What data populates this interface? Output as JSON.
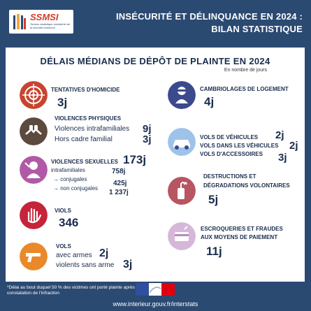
{
  "header": {
    "logo_title": "SSMSI",
    "logo_subtitle": "Service statistique ministériel de la sécurité intérieure",
    "title_line1": "INSÉCURITÉ ET DÉLINQUANCE EN 2024 :",
    "title_line2": "BILAN STATISTIQUE"
  },
  "main": {
    "title": "DÉLAIS MÉDIANS DE DÉPÔT DE PLAINTE EN 2024",
    "subtitle": "En nombre de jours"
  },
  "left": {
    "homicide": {
      "label": "TENTATIVES D'HOMICIDE",
      "value": "3j"
    },
    "physical": {
      "label": "VIOLENCES PHYSIQUES",
      "intra_label": "Violences intrafamiliales",
      "intra_value": "9j",
      "hors_label": "Hors cadre familial",
      "hors_value": "3j"
    },
    "sexual": {
      "label": "VIOLENCES SEXUELLES",
      "value": "173j",
      "intra_label": "intrafamiliales",
      "intra_value": "758j",
      "conj_label": "→ conjugales",
      "conj_value": "425j",
      "nonconj_label": "→ non conjugales",
      "nonconj_value": "1 237j"
    },
    "rape": {
      "label": "VIOLS",
      "value": "346"
    },
    "theft": {
      "label": "VOLS",
      "armed_label": "avec armes",
      "armed_value": "2j",
      "unarmed_label": "violents sans arme",
      "unarmed_value": "3j"
    }
  },
  "right": {
    "burglary": {
      "label": "CAMBRIOLAGES DE LOGEMENT",
      "value": "4j"
    },
    "vehicles": {
      "line1": "VOLS DE VÉHICULES",
      "value1": "2j",
      "line2": "VOLS DANS LES VÉHICULES",
      "value2": "2j",
      "line3": "VOLS D'ACCESSOIRES",
      "value3": "3j"
    },
    "destruction": {
      "line1": "DESTRUCTIONS ET",
      "line2": "DÉGRADATIONS VOLONTAIRES",
      "value": "5j"
    },
    "fraud": {
      "line1": "ESCROQUERIES ET FRAUDES",
      "line2": "AUX MOYENS DE PAIEMENT",
      "value": "11j"
    }
  },
  "footer": {
    "note": "*Délai au bout duquel 50 % des victimes ont porté plainte après constatation de l'infraction",
    "url": "www.interieur.gouv.fr/interstats"
  },
  "colors": {
    "background": "#2b4a72",
    "homicide_icon": "#c8442e",
    "physical_icon": "#5c4a3f",
    "sexual_icon": "#b05aa6",
    "rape_icon": "#c6243a",
    "theft_icon": "#e9892a",
    "burglary_icon": "#3b4a8c",
    "vehicles_icon": "#9fc3e8",
    "destruction_icon": "#b75560",
    "fraud_icon": "#d6b7d9"
  },
  "icons": [
    "target-icon",
    "fist-icon",
    "person-icon",
    "hand-icon",
    "gun-icon",
    "burglar-icon",
    "car-icon",
    "molotov-icon",
    "card-icon"
  ]
}
